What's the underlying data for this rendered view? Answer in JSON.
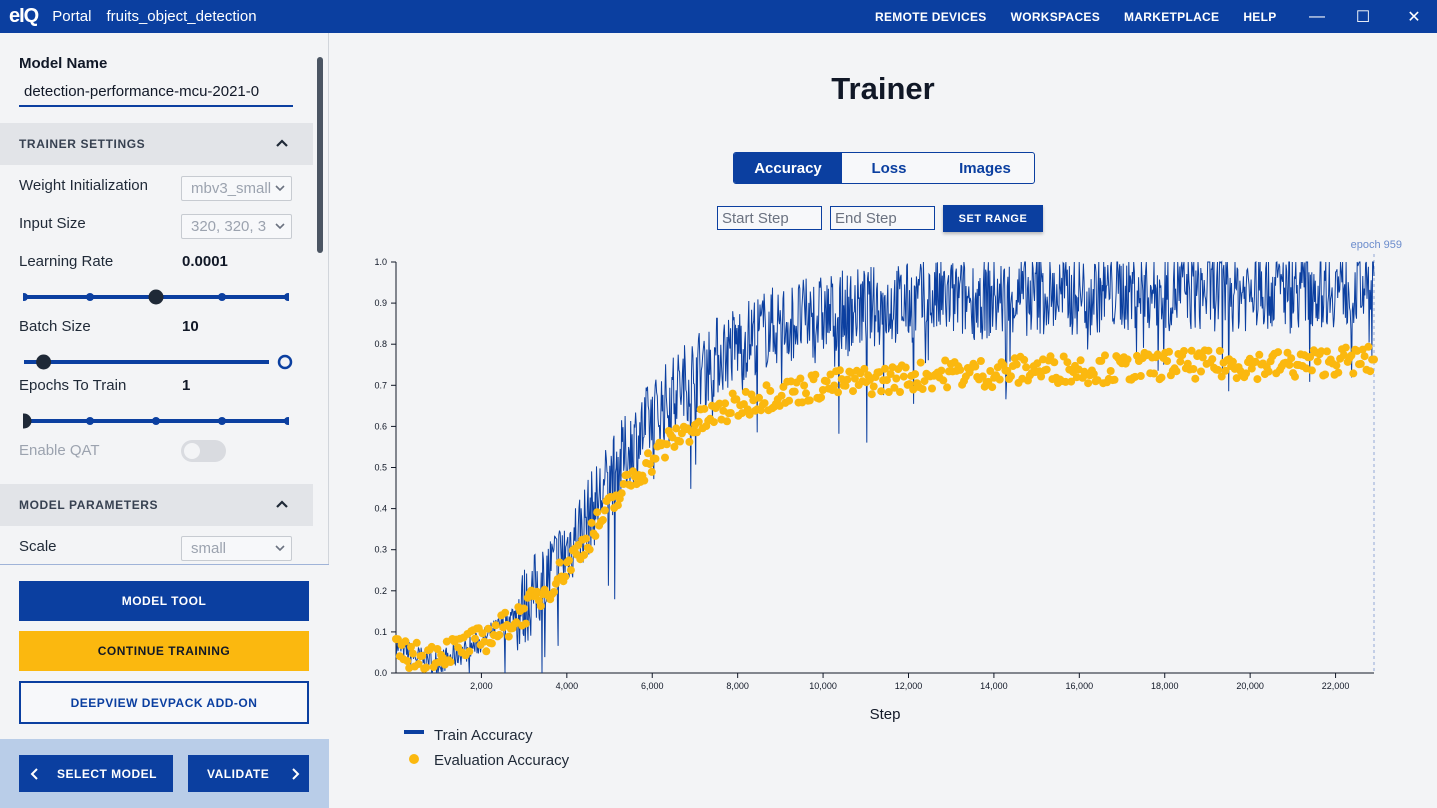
{
  "titlebar": {
    "logo": "eIQ",
    "portal": "Portal",
    "project": "fruits_object_detection",
    "nav": [
      "REMOTE DEVICES",
      "WORKSPACES",
      "MARKETPLACE",
      "HELP"
    ],
    "controls": {
      "minimize": "—",
      "maximize": "☐",
      "close": "✕"
    }
  },
  "sidebar": {
    "model_name_label": "Model Name",
    "model_name_value": "detection-performance-mcu-2021-0",
    "trainer_settings": {
      "header": "TRAINER SETTINGS",
      "weight_init_label": "Weight Initialization",
      "weight_init_value": "mbv3_small",
      "input_size_label": "Input Size",
      "input_size_value": "320, 320, 3",
      "learning_rate_label": "Learning Rate",
      "learning_rate_value": "0.0001",
      "learning_rate_slider_position": 0.5,
      "batch_size_label": "Batch Size",
      "batch_size_value": "10",
      "batch_size_slider_position": 0.08,
      "epochs_label": "Epochs To Train",
      "epochs_value": "1",
      "epochs_slider_position": 0.0,
      "qat_label": "Enable QAT",
      "qat_enabled": false
    },
    "model_parameters": {
      "header": "MODEL PARAMETERS",
      "scale_label": "Scale",
      "scale_value": "small"
    },
    "buttons": {
      "model_tool": "MODEL TOOL",
      "continue_training": "CONTINUE TRAINING",
      "deepview": "DEEPVIEW DEVPACK ADD-ON"
    },
    "nav": {
      "select_model": "SELECT MODEL",
      "validate": "VALIDATE"
    }
  },
  "main": {
    "title": "Trainer",
    "tabs": [
      "Accuracy",
      "Loss",
      "Images"
    ],
    "active_tab": "Accuracy",
    "start_step_placeholder": "Start Step",
    "end_step_placeholder": "End Step",
    "set_range_label": "SET RANGE"
  },
  "colors": {
    "brand": "#0b3fa0",
    "accent": "#fbb80f"
  },
  "chart_data": {
    "type": "line",
    "title": "",
    "xlabel": "Step",
    "ylabel": "",
    "xlim": [
      0,
      22900
    ],
    "ylim": [
      0,
      1.0
    ],
    "x_ticks": [
      2000,
      4000,
      6000,
      8000,
      10000,
      12000,
      14000,
      16000,
      18000,
      20000,
      22000
    ],
    "x_tick_labels": [
      "2,000",
      "4,000",
      "6,000",
      "8,000",
      "10,000",
      "12,000",
      "14,000",
      "16,000",
      "18,000",
      "20,000",
      "22,000"
    ],
    "y_ticks": [
      0.0,
      0.1,
      0.2,
      0.3,
      0.4,
      0.5,
      0.6,
      0.7,
      0.8,
      0.9,
      1.0
    ],
    "y_tick_labels": [
      "0.0",
      "0.1",
      "0.2",
      "0.3",
      "0.4",
      "0.5",
      "0.6",
      "0.7",
      "0.8",
      "0.9",
      "1.0"
    ],
    "marker_label": "epoch 959",
    "marker_x": 22900,
    "legend_position": "bottom-left",
    "series": [
      {
        "name": "Train Accuracy",
        "style": "line",
        "color": "#0b3fa0",
        "x": [
          0,
          500,
          1000,
          1500,
          2000,
          2500,
          3000,
          3500,
          4000,
          4500,
          5000,
          5500,
          6000,
          6500,
          7000,
          7500,
          8000,
          8500,
          9000,
          9500,
          10000,
          11000,
          12000,
          13000,
          14000,
          15000,
          16000,
          17000,
          18000,
          19000,
          20000,
          21000,
          22000,
          22900
        ],
        "values": [
          0.07,
          0.04,
          0.03,
          0.05,
          0.08,
          0.12,
          0.17,
          0.24,
          0.31,
          0.39,
          0.48,
          0.56,
          0.63,
          0.69,
          0.74,
          0.78,
          0.81,
          0.84,
          0.86,
          0.87,
          0.88,
          0.9,
          0.91,
          0.92,
          0.92,
          0.93,
          0.93,
          0.94,
          0.94,
          0.94,
          0.94,
          0.95,
          0.95,
          0.95
        ]
      },
      {
        "name": "Evaluation Accuracy",
        "style": "scatter",
        "color": "#fbb80f",
        "x": [
          0,
          500,
          1000,
          1500,
          2000,
          2500,
          3000,
          3500,
          4000,
          4500,
          5000,
          5500,
          6000,
          6500,
          7000,
          7500,
          8000,
          8500,
          9000,
          9500,
          10000,
          11000,
          12000,
          13000,
          14000,
          15000,
          16000,
          17000,
          18000,
          19000,
          20000,
          21000,
          22000,
          22900
        ],
        "values": [
          0.05,
          0.04,
          0.05,
          0.06,
          0.08,
          0.11,
          0.15,
          0.2,
          0.26,
          0.33,
          0.4,
          0.47,
          0.52,
          0.57,
          0.6,
          0.63,
          0.65,
          0.67,
          0.68,
          0.69,
          0.7,
          0.71,
          0.72,
          0.73,
          0.73,
          0.74,
          0.74,
          0.74,
          0.75,
          0.75,
          0.75,
          0.75,
          0.76,
          0.76
        ]
      }
    ]
  }
}
